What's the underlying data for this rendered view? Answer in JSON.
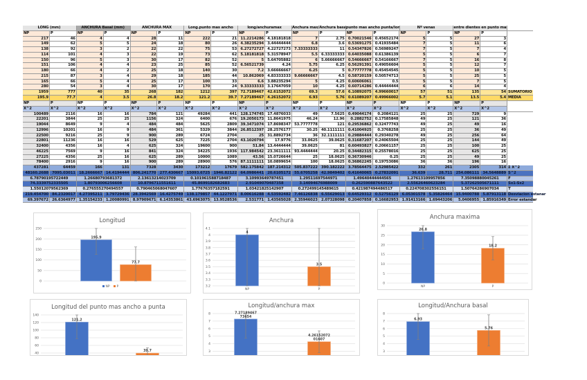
{
  "table1": {
    "headers": [
      "LONG (mm)",
      "ANCHURA Basal (mm)",
      "ANCHURA MAX",
      "Long.punto mas ancho",
      "long/anchuramax",
      "Anchura max/Anchura basal",
      "punto mas ancho punta/long",
      "Nº venas",
      "entre dientes en punto mas"
    ],
    "sub": [
      "NP",
      "P"
    ],
    "rows": [
      [
        "217",
        "46",
        "4",
        "4",
        "28",
        "11",
        "222",
        "21",
        "11.2214286",
        "4.18181818",
        "7",
        "2.75",
        "0.70021546",
        "0.45652174",
        "5",
        "5",
        "27",
        "3"
      ],
      [
        "149",
        "62",
        "5",
        "5",
        "24",
        "18",
        "80",
        "26",
        "4.38235294",
        "3.44444444",
        "6.8",
        "3.6",
        "0.53691275",
        "0.41935484",
        "7",
        "5",
        "11",
        "6"
      ],
      [
        "138",
        "92",
        "3",
        "2",
        "22",
        "22",
        "75",
        "53",
        "6.27272727",
        "4.22727273",
        "7.33333333",
        "11",
        "0.54347826",
        "0.56989247",
        "7",
        "5",
        "7",
        "4"
      ],
      [
        "114",
        "101",
        "4",
        "3",
        "22",
        "19",
        "73",
        "62",
        "5.18181818",
        "5.31578947",
        "5.5",
        "6.33333333",
        "0.64035088",
        "0.61386139",
        "5",
        "5",
        "6",
        "7"
      ],
      [
        "150",
        "96",
        "5",
        "3",
        "30",
        "17",
        "82",
        "52",
        "5",
        "5.64705882",
        "6",
        "5.66666667",
        "0.54666667",
        "0.54166667",
        "7",
        "5",
        "16",
        "8"
      ],
      [
        "151",
        "106",
        "4",
        "4",
        "23",
        "25",
        "85",
        "52",
        "6.56521739",
        "4.24",
        "5.75",
        "6.25",
        "0.56291391",
        "0.49056604",
        "5",
        "5",
        "12",
        "7"
      ],
      [
        "180",
        "66",
        "4",
        "2",
        "25",
        "18",
        "140",
        "30",
        "7.2",
        "3.66666667",
        "6.25",
        "5",
        "0.77777778",
        "0.45454545",
        "5",
        "5",
        "10",
        "5"
      ],
      [
        "215",
        "87",
        "3",
        "4",
        "29",
        "18",
        "185",
        "44",
        "10.862069",
        "4.83333333",
        "9.66666667",
        "4.5",
        "0.58720159",
        "0.50574713",
        "5",
        "5",
        "25",
        "5"
      ],
      [
        "165",
        "66",
        "5",
        "4",
        "25",
        "17",
        "100",
        "33",
        "6.6",
        "3.88235294",
        "5",
        "4.25",
        "0.60606061",
        "0.5",
        "5",
        "5",
        "7",
        "5"
      ],
      [
        "280",
        "54",
        "3",
        "4",
        "30",
        "17",
        "170",
        "24",
        "9.33333333",
        "3.17647059",
        "10",
        "4.25",
        "0.60714286",
        "0.44444444",
        "6",
        "6",
        "14",
        "4"
      ]
    ],
    "sum": {
      "label": "SUMATORIO",
      "values": [
        "1959",
        "777",
        "40",
        "35",
        "268",
        "182",
        "1212",
        "397",
        "72.7189467",
        "42.6152072",
        "69.3",
        "57.6",
        "6.10892075",
        "4.99660017",
        "57",
        "51",
        "135",
        "54"
      ]
    },
    "mean": {
      "label": "MEDIA",
      "values": [
        "195.9",
        "77.7",
        "4",
        "3.5",
        "26.8",
        "18.2",
        "121.2",
        "39.7",
        "7.27189467",
        "4.26152072",
        "6.93",
        "5.76",
        "0.61089207",
        "0.49966002",
        "5.7",
        "5.1",
        "13.5",
        "5.4"
      ]
    }
  },
  "table2": {
    "sub": [
      "NP",
      "P"
    ],
    "sq": "X^2",
    "rows": [
      [
        "100489",
        "2116",
        "16",
        "16",
        "784",
        "121",
        "49284",
        "441",
        "128.174745",
        "17.4876033",
        "49",
        "7.5625",
        "0.49044174",
        "0.2084121",
        "25",
        "25",
        "729",
        "9"
      ],
      [
        "22201",
        "3844",
        "25",
        "25",
        "1156",
        "324",
        "6400",
        "676",
        "19.2050173",
        "11.8641975",
        "46.24",
        "12.96",
        "0.2882752",
        "0.17585848",
        "49",
        "25",
        "121",
        "36"
      ],
      [
        "19044",
        "8649",
        "9",
        "4",
        "484",
        "484",
        "5625",
        "2809",
        "39.3471074",
        "17.8698347",
        "53.7777778",
        "121",
        "0.29536862",
        "0.32477743",
        "49",
        "25",
        "49",
        "16"
      ],
      [
        "12996",
        "10201",
        "16",
        "9",
        "484",
        "361",
        "5329",
        "3844",
        "26.8512397",
        "28.2576177",
        "30.25",
        "40.1111111",
        "0.41004925",
        "0.3768258",
        "25",
        "25",
        "36",
        "49"
      ],
      [
        "22500",
        "9216",
        "25",
        "9",
        "900",
        "289",
        "6724",
        "2704",
        "25",
        "31.8892734",
        "36",
        "32.1111111",
        "0.29884444",
        "0.29340278",
        "49",
        "25",
        "256",
        "64"
      ],
      [
        "22801",
        "11236",
        "16",
        "16",
        "529",
        "625",
        "7225",
        "2704",
        "43.1020794",
        "17.9776",
        "33.0625",
        "39.0625",
        "0.31687207",
        "0.24065504",
        "25",
        "25",
        "144",
        "49"
      ],
      [
        "32400",
        "4356",
        "16",
        "4",
        "625",
        "324",
        "19600",
        "900",
        "51.84",
        "13.4444444",
        "39.0625",
        "81",
        "0.60493827",
        "0.20661157",
        "25",
        "25",
        "100",
        "25"
      ],
      [
        "46225",
        "7569",
        "9",
        "16",
        "841",
        "324",
        "34225",
        "1936",
        "117.984542",
        "23.3611111",
        "93.4444444",
        "20.25",
        "0.34482315",
        "0.25578016",
        "25",
        "25",
        "625",
        "25"
      ],
      [
        "27225",
        "4356",
        "25",
        "16",
        "625",
        "289",
        "10000",
        "1089",
        "43.56",
        "15.0726644",
        "25",
        "18.0625",
        "0.36730946",
        "0.25",
        "25",
        "25",
        "49",
        "25"
      ],
      [
        "78400",
        "2916",
        "9",
        "16",
        "900",
        "289",
        "28900",
        "576",
        "87.1111111",
        "10.0899654",
        "100",
        "18.0625",
        "0.36862245",
        "0.19753086",
        "36",
        "36",
        "196",
        "16"
      ]
    ],
    "sum": {
      "label": "Σ X^2",
      "values": [
        "437281",
        "64459",
        "166",
        "131",
        "7328",
        "3430",
        "173212",
        "17679",
        "582.175842",
        "187.214312",
        "505.837222",
        "390.182222",
        "3.78564475",
        "2.52985422",
        "332",
        "261",
        "2305",
        "314"
      ]
    },
    "stats": [
      {
        "label": "S^2",
        "merged": false,
        "style": "dark",
        "values": [
          "48160.2688",
          "7095.03011",
          "18.2666667",
          "14.4194444",
          "806.241770",
          "277.430667",
          "15093.6725",
          "1946.82122",
          "64.0986441",
          "20.6105172",
          "55.6705258",
          "42.9849402",
          "0.41640065",
          "0.27832091",
          "36.639",
          "28.711",
          "254.086111",
          "34.5648889"
        ]
      },
      {
        "label": "F",
        "merged": true,
        "style": "light",
        "values": [
          "6.78790195722449",
          "1.26680793681372",
          "2.13613214023709",
          "0.101961588718487",
          "3.10993649787451",
          "1.29511697544971",
          "1.49640444444565",
          "1.27613109957856",
          "7.35098880045261"
        ]
      },
      {
        "label": "Sx1-Sx2",
        "merged": true,
        "style": "dark",
        "values": [
          "74.3339752335505",
          "1.80793006256608",
          "10.8796711551611",
          "45.8699182682683",
          "2.91049070487358",
          "3.14094676988009",
          "0.262590887643522",
          "2.55626460623284",
          "5.37262505671111"
        ]
      },
      {
        "label": "T",
        "merged": true,
        "style": "pale",
        "values": [
          "1.55012079562369",
          "0.276555270494557",
          "0.790465068047607",
          "1.77676357182591",
          "1.03421825142907",
          "0.272499145489615",
          "0.421987494486517",
          "0.224708302556151",
          "1.50764286907034"
        ]
      },
      {
        "label": "Desviacion estanar",
        "merged": false,
        "style": "dark",
        "values": [
          "219.454700",
          "84.2320017",
          "4.27395211",
          "3.79729436",
          "28.3942569",
          "16.4275749",
          "138.179857",
          "44.1227971",
          "8.00616288",
          "4.53592482",
          "7.46126838",
          "6.55629013",
          "0.64529312",
          "0.52756129",
          "6.05301578",
          "5.35826464",
          "15.9400788",
          "5.87913118"
        ]
      },
      {
        "label": "Error estandar",
        "merged": false,
        "style": "light",
        "values": [
          "69.397672",
          "26.6364977",
          "1.35154233",
          "1.20080991",
          "8.97909671",
          "6.14353861",
          "43.6963075",
          "13.9528536",
          "2.531771",
          "1.43565028",
          "2.35946023",
          "2.07328098",
          "0.20407858",
          "0.16682953",
          "1.91413166",
          "1.69443206",
          "5.0406955",
          "1.85916349"
        ]
      }
    ]
  },
  "colors": {
    "np": "#4472c4",
    "p": "#ed7d31"
  },
  "chart_data": [
    {
      "type": "bar",
      "title": "Longitud",
      "categories": [
        "NP",
        "P"
      ],
      "values": [
        195.9,
        77.7
      ],
      "value_labels": [
        "195.9",
        "77.7"
      ],
      "errors": [
        69.4,
        84.2
      ],
      "ylim": [
        0,
        250
      ],
      "ystep": 50,
      "legend": [
        "NP",
        "P"
      ],
      "legend_position": "bottom",
      "show_categories": false,
      "grid": true
    },
    {
      "type": "bar",
      "title": "Anchura",
      "categories": [
        "NP",
        "P"
      ],
      "values": [
        4,
        3.5
      ],
      "value_labels": [
        "4",
        "3.5"
      ],
      "errors": [
        4.3,
        3.8
      ],
      "ylim": [
        3.2,
        4.1
      ],
      "ystep": 0.1,
      "show_categories": true,
      "grid": true
    },
    {
      "type": "bar",
      "title": "Anchura maxima",
      "categories": [
        "NP",
        "P"
      ],
      "values": [
        26.8,
        18.2
      ],
      "value_labels": [
        "26.8",
        "18.2"
      ],
      "errors": [
        9.0,
        6.1
      ],
      "ylim": [
        0,
        30
      ],
      "ystep": 5,
      "show_categories": true,
      "grid": true
    },
    {
      "type": "bar",
      "title": "Longitud del punto mas ancho a punta",
      "categories": [
        "NP",
        "P"
      ],
      "values": [
        121.2,
        39.7
      ],
      "value_labels": [
        "121.2",
        "39.7"
      ],
      "errors": [
        43.7,
        14.0
      ],
      "ylim": [
        0,
        140
      ],
      "ystep": 20,
      "show_categories": false,
      "grid": true
    },
    {
      "type": "bar",
      "title": "Longitud/anchura max",
      "categories": [
        "NP",
        "P"
      ],
      "values": [
        7.2718946773654,
        4.2615207201607
      ],
      "value_labels": [
        "7.27189467 73654",
        "4.26152072 01607"
      ],
      "errors": [
        2.53,
        1.44
      ],
      "ylim": [
        0,
        8
      ],
      "ystep": 1,
      "show_categories": false,
      "grid": true
    },
    {
      "type": "bar",
      "title": "Longitud/Anchura basal",
      "categories": [
        "NP",
        "P"
      ],
      "values": [
        6.93,
        5.76
      ],
      "value_labels": [
        "6.93",
        "5.76"
      ],
      "errors": [
        2.36,
        2.07
      ],
      "ylim": [
        0,
        8
      ],
      "ystep": 1,
      "show_categories": false,
      "grid": true
    }
  ]
}
